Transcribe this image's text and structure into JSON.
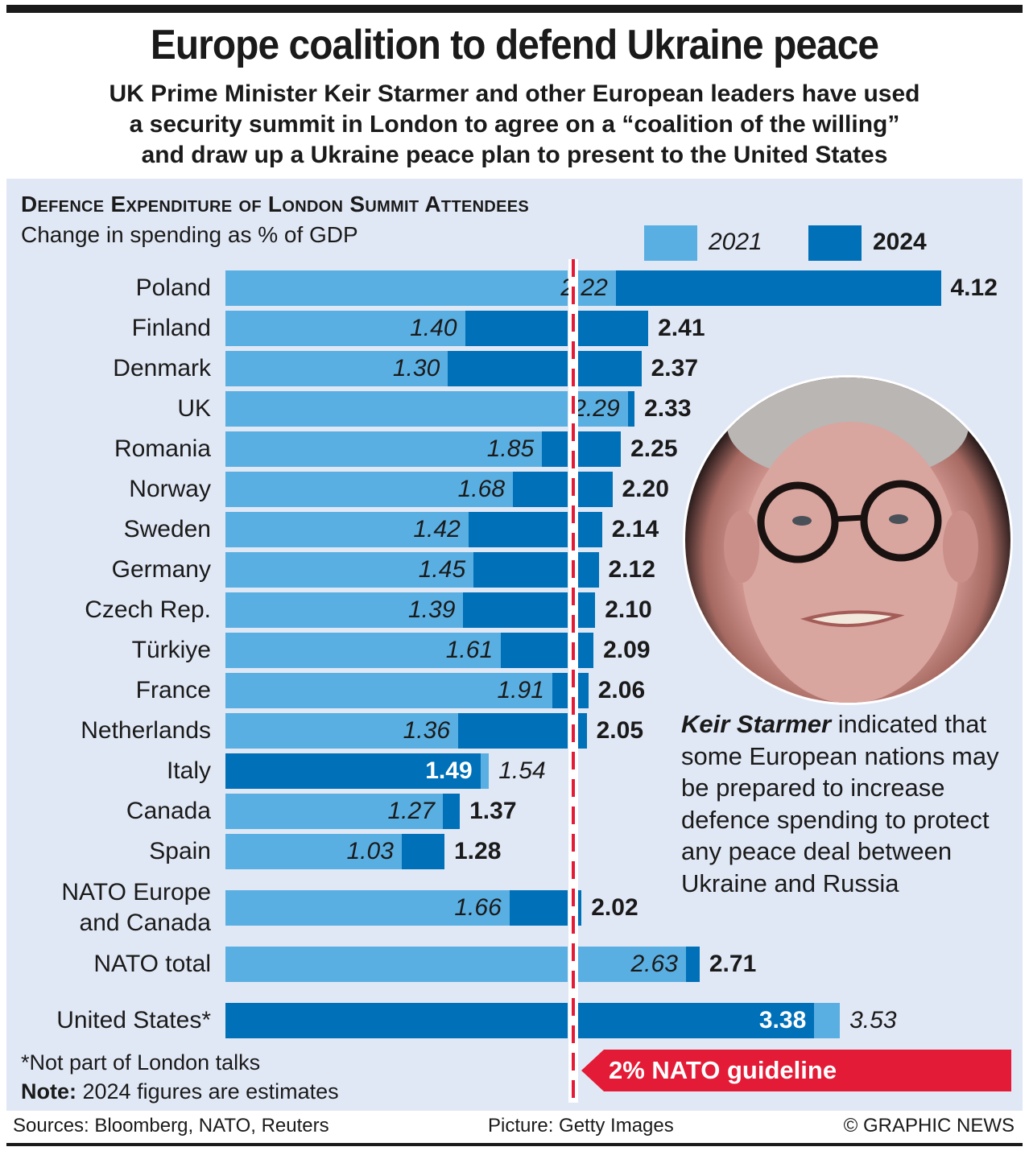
{
  "header": {
    "title": "Europe coalition to defend Ukraine peace",
    "subtitle_lines": [
      "UK Prime Minister Keir Starmer and other European leaders have used",
      "a security summit in London to agree on a “coalition of the willing”",
      "and draw up a Ukraine peace plan to present to the United States"
    ]
  },
  "colors": {
    "c2021": "#5aafe2",
    "c2024": "#0070b8",
    "guideline": "#e31b36",
    "panel": "#e1e8f5"
  },
  "chart_data": {
    "type": "bar",
    "title": "Defence Expenditure of London Summit Attendees",
    "subtitle": "Change in spending as % of GDP",
    "legend": [
      {
        "name": "2021",
        "color": "#5aafe2"
      },
      {
        "name": "2024",
        "color": "#0070b8"
      }
    ],
    "legend_placement": "top-right",
    "reference_line": {
      "value": 2,
      "label": "2% NATO guideline"
    },
    "xlim": [
      0,
      4.12
    ],
    "categories": [
      "Poland",
      "Finland",
      "Denmark",
      "UK",
      "Romania",
      "Norway",
      "Sweden",
      "Germany",
      "Czech Rep.",
      "Türkiye",
      "France",
      "Netherlands",
      "Italy",
      "Canada",
      "Spain",
      "NATO Europe and Canada",
      "NATO total",
      "United States*"
    ],
    "series": [
      {
        "name": "2021",
        "values": [
          2.22,
          1.4,
          1.3,
          2.29,
          1.85,
          1.68,
          1.42,
          1.45,
          1.39,
          1.61,
          1.91,
          1.36,
          1.54,
          1.27,
          1.03,
          1.66,
          2.63,
          3.53
        ]
      },
      {
        "name": "2024",
        "values": [
          4.12,
          2.41,
          2.37,
          2.33,
          2.25,
          2.2,
          2.14,
          2.12,
          2.1,
          2.09,
          2.06,
          2.05,
          1.49,
          1.37,
          1.28,
          2.02,
          2.71,
          3.38
        ]
      }
    ],
    "value_labels_2021": [
      "2.22",
      "1.40",
      "1.30",
      "2.29",
      "1.85",
      "1.68",
      "1.42",
      "1.45",
      "1.39",
      "1.61",
      "1.91",
      "1.36",
      "1.54",
      "1.27",
      "1.03",
      "1.66",
      "2.63",
      "3.53"
    ],
    "value_labels_2024": [
      "4.12",
      "2.41",
      "2.37",
      "2.33",
      "2.25",
      "2.20",
      "2.14",
      "2.12",
      "2.10",
      "2.09",
      "2.06",
      "2.05",
      "1.49",
      "1.37",
      "1.28",
      "2.02",
      "2.71",
      "3.38"
    ]
  },
  "row_labels": [
    [
      "Poland"
    ],
    [
      "Finland"
    ],
    [
      "Denmark"
    ],
    [
      "UK"
    ],
    [
      "Romania"
    ],
    [
      "Norway"
    ],
    [
      "Sweden"
    ],
    [
      "Germany"
    ],
    [
      "Czech Rep."
    ],
    [
      "Türkiye"
    ],
    [
      "France"
    ],
    [
      "Netherlands"
    ],
    [
      "Italy"
    ],
    [
      "Canada"
    ],
    [
      "Spain"
    ],
    [
      "NATO Europe",
      "and Canada"
    ],
    [
      "NATO total"
    ],
    [
      "United States*"
    ]
  ],
  "caption": {
    "name": "Keir Starmer",
    "text": " indicated that some European nations may be prepared to increase defence spending to protect any peace deal between Ukraine and Russia"
  },
  "photo_alt": "Keir Starmer portrait",
  "notes": {
    "footnote": "*Not part of London talks",
    "note_label": "Note:",
    "note_text": " 2024 figures are estimates"
  },
  "guideline_label": "2% NATO guideline",
  "footer": {
    "sources": "Sources: Bloomberg, NATO, Reuters",
    "picture": "Picture: Getty Images",
    "copyright": "© GRAPHIC NEWS"
  }
}
